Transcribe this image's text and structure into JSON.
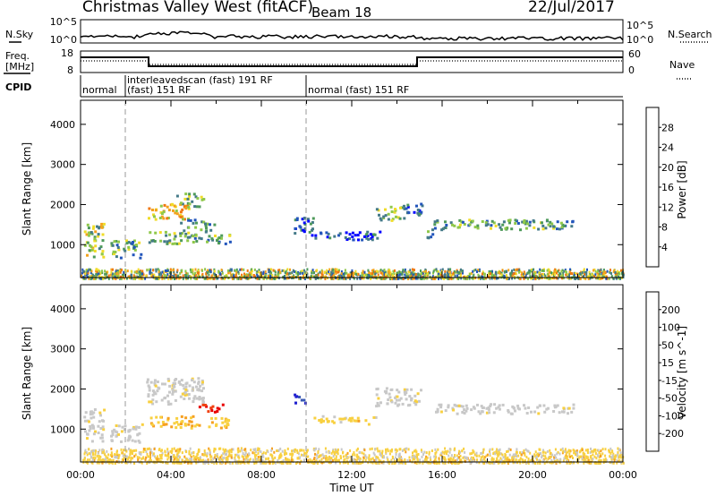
{
  "title": {
    "station": "Christmas Valley West (fitACF)",
    "beam": "Beam 18",
    "date": "22/Jul/2017"
  },
  "top_panels": {
    "nsky_label": "N.Sky",
    "nsearch_label": "N.Search",
    "noise_ticks_left": [
      "10^5",
      "10^0"
    ],
    "noise_ticks_right": [
      "10^5",
      "10^0"
    ],
    "freq_label": [
      "Freq.",
      "[MHz]"
    ],
    "freq_ticks": [
      "18",
      "8"
    ],
    "nave_label": "Nave",
    "nave_ticks": [
      "60",
      "0"
    ],
    "cpid_label": "CPID"
  },
  "cpid_segments": [
    {
      "start_h": 0,
      "end_h": 2.0,
      "lines": [
        "normal"
      ]
    },
    {
      "start_h": 2.0,
      "end_h": 10.0,
      "lines": [
        "interleavedscan (fast) 191 RF",
        "(fast) 151 RF"
      ]
    },
    {
      "start_h": 10.0,
      "end_h": 24.0,
      "lines": [
        "normal (fast) 151 RF"
      ]
    }
  ],
  "colors": {
    "power_scale": [
      "#0000ff",
      "#2255bb",
      "#447a88",
      "#4e9a5a",
      "#8fc84a",
      "#f0dc28",
      "#f3a21c",
      "#f07810",
      "#e83a0a",
      "#e00000"
    ],
    "velocity_scale": [
      "#e80000",
      "#f04010",
      "#f47a18",
      "#f6a020",
      "#f8d040",
      "#c8c8c8",
      "#c8c8c8",
      "#80cc40",
      "#2e9a3c",
      "#3a5ab4",
      "#2020d0"
    ]
  },
  "chart_data": [
    {
      "type": "heatmap",
      "name": "Power",
      "ylabel": "Slant Range [km]",
      "xlabel": "",
      "x_range_hours": [
        0,
        24
      ],
      "ylim": [
        180,
        4600
      ],
      "y_ticks": [
        "1000",
        "2000",
        "3000",
        "4000"
      ],
      "colorbar_label": "Power [dB]",
      "colorbar_ticks": [
        "4",
        "8",
        "12",
        "16",
        "20",
        "24",
        "28"
      ],
      "clim": [
        0,
        30
      ],
      "echo_regions": [
        {
          "t0": 0.1,
          "t1": 1.0,
          "r0": 700,
          "r1": 1550,
          "value": 14
        },
        {
          "t0": 1.3,
          "t1": 2.7,
          "r0": 700,
          "r1": 1150,
          "value": 10
        },
        {
          "t0": 2.9,
          "t1": 4.8,
          "r0": 1650,
          "r1": 2050,
          "value": 18
        },
        {
          "t0": 4.2,
          "t1": 5.4,
          "r0": 1950,
          "r1": 2300,
          "value": 12
        },
        {
          "t0": 3.0,
          "t1": 5.0,
          "r0": 1050,
          "r1": 1350,
          "value": 12
        },
        {
          "t0": 5.0,
          "t1": 6.6,
          "r0": 1050,
          "r1": 1300,
          "value": 11
        },
        {
          "t0": 4.4,
          "t1": 5.9,
          "r0": 1350,
          "r1": 1650,
          "value": 8
        },
        {
          "t0": 9.4,
          "t1": 10.3,
          "r0": 1200,
          "r1": 1700,
          "value": 6
        },
        {
          "t0": 10.3,
          "t1": 13.2,
          "r0": 1150,
          "r1": 1350,
          "value": 5
        },
        {
          "t0": 13.0,
          "t1": 14.3,
          "r0": 1600,
          "r1": 2000,
          "value": 12
        },
        {
          "t0": 14.3,
          "t1": 15.1,
          "r0": 1750,
          "r1": 2050,
          "value": 6
        },
        {
          "t0": 15.2,
          "t1": 15.6,
          "r0": 1200,
          "r1": 1450,
          "value": 8
        },
        {
          "t0": 15.6,
          "t1": 21.8,
          "r0": 1400,
          "r1": 1650,
          "value": 10
        }
      ],
      "ground_band": {
        "r0": 180,
        "r1": 420,
        "value": 14
      }
    },
    {
      "type": "heatmap",
      "name": "Velocity",
      "ylabel": "Slant Range [km]",
      "xlabel": "Time UT",
      "x_range_hours": [
        0,
        24
      ],
      "x_ticks": [
        "00:00",
        "04:00",
        "08:00",
        "12:00",
        "16:00",
        "20:00",
        "00:00"
      ],
      "ylim": [
        180,
        4600
      ],
      "y_ticks": [
        "1000",
        "2000",
        "3000",
        "4000"
      ],
      "colorbar_label": "Velocity [m s^-1]",
      "colorbar_ticks": [
        "-200",
        "-100",
        "-50",
        "-15",
        "15",
        "50",
        "100",
        "200"
      ],
      "clim": [
        -250,
        250
      ],
      "echo_regions": [
        {
          "t0": 0.1,
          "t1": 1.0,
          "r0": 700,
          "r1": 1550,
          "value": 0
        },
        {
          "t0": 1.3,
          "t1": 2.7,
          "r0": 700,
          "r1": 1150,
          "value": 0
        },
        {
          "t0": 2.9,
          "t1": 5.4,
          "r0": 1650,
          "r1": 2300,
          "value": 0
        },
        {
          "t0": 3.0,
          "t1": 5.0,
          "r0": 1050,
          "r1": 1350,
          "value": -60
        },
        {
          "t0": 5.0,
          "t1": 6.6,
          "r0": 1050,
          "r1": 1300,
          "value": -50
        },
        {
          "t0": 5.2,
          "t1": 6.5,
          "r0": 1450,
          "r1": 1650,
          "value": -220
        },
        {
          "t0": 9.4,
          "t1": 10.0,
          "r0": 1650,
          "r1": 1900,
          "value": 220
        },
        {
          "t0": 10.3,
          "t1": 13.2,
          "r0": 1150,
          "r1": 1350,
          "value": -40
        },
        {
          "t0": 13.0,
          "t1": 15.1,
          "r0": 1600,
          "r1": 2050,
          "value": 0
        },
        {
          "t0": 15.6,
          "t1": 21.8,
          "r0": 1400,
          "r1": 1650,
          "value": 0
        }
      ],
      "ground_band": {
        "r0": 180,
        "r1": 550,
        "value": -40
      }
    }
  ]
}
